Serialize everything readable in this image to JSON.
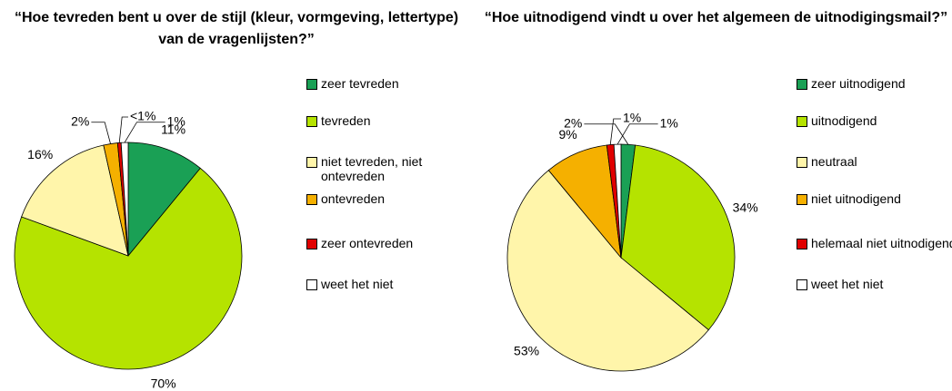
{
  "chart_data": [
    {
      "type": "pie",
      "title": "“Hoe tevreden bent u over de stijl (kleur, vormgeving, lettertype) van de vragenlijsten?”",
      "categories": [
        "zeer tevreden",
        "tevreden",
        "niet tevreden, niet ontevreden",
        "ontevreden",
        "zeer ontevreden",
        "weet het niet"
      ],
      "values": [
        11,
        70,
        16,
        2,
        0.5,
        1
      ],
      "value_labels": [
        "11%",
        "70%",
        "16%",
        "2%",
        "<1%",
        "1%"
      ],
      "colors": [
        "#1aa055",
        "#b5e300",
        "#fff5aa",
        "#f5b000",
        "#e00000",
        "#ffffff"
      ]
    },
    {
      "type": "pie",
      "title": "“Hoe uitnodigend vindt u over het algemeen de uitnodigingsmail?”",
      "categories": [
        "zeer uitnodigend",
        "uitnodigend",
        "neutraal",
        "niet uitnodigend",
        "helemaal niet uitnodigend",
        "weet het niet"
      ],
      "values": [
        2,
        34,
        53,
        9,
        1,
        1
      ],
      "value_labels": [
        "2%",
        "34%",
        "53%",
        "9%",
        "1%",
        "1%"
      ],
      "colors": [
        "#1aa055",
        "#b5e300",
        "#fff5aa",
        "#f5b000",
        "#e00000",
        "#ffffff"
      ]
    }
  ]
}
